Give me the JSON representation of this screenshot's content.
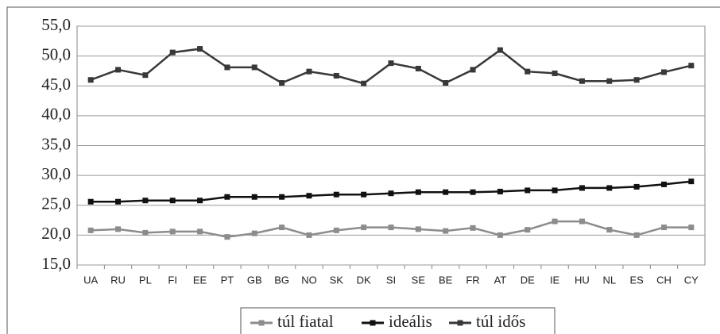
{
  "chart_data": {
    "type": "line",
    "categories": [
      "UA",
      "RU",
      "PL",
      "FI",
      "EE",
      "PT",
      "GB",
      "BG",
      "NO",
      "SK",
      "DK",
      "SI",
      "SE",
      "BE",
      "FR",
      "AT",
      "DE",
      "IE",
      "HU",
      "NL",
      "ES",
      "CH",
      "CY"
    ],
    "series": [
      {
        "name": "túl fiatal",
        "color": "#8c8c8c",
        "values": [
          20.8,
          21.0,
          20.4,
          20.6,
          20.6,
          19.7,
          20.3,
          21.3,
          20.0,
          20.8,
          21.3,
          21.3,
          21.0,
          20.7,
          21.2,
          20.0,
          20.9,
          22.3,
          22.3,
          20.9,
          20.0,
          21.3,
          21.3
        ]
      },
      {
        "name": "ideális",
        "color": "#111111",
        "values": [
          25.6,
          25.6,
          25.8,
          25.8,
          25.8,
          26.4,
          26.4,
          26.4,
          26.6,
          26.8,
          26.8,
          27.0,
          27.2,
          27.2,
          27.2,
          27.3,
          27.5,
          27.5,
          27.9,
          27.9,
          28.1,
          28.5,
          29.0
        ]
      },
      {
        "name": "túl idős",
        "color": "#383838",
        "values": [
          46.0,
          47.7,
          46.8,
          50.6,
          51.2,
          48.1,
          48.1,
          45.5,
          47.4,
          46.7,
          45.4,
          48.8,
          47.9,
          45.5,
          47.7,
          51.0,
          47.4,
          47.1,
          45.8,
          45.8,
          46.0,
          47.3,
          48.4
        ]
      }
    ],
    "ylim": [
      15,
      55
    ],
    "yticks": [
      {
        "value": 15,
        "label": "15,0"
      },
      {
        "value": 20,
        "label": "20,0"
      },
      {
        "value": 25,
        "label": "25,0"
      },
      {
        "value": 30,
        "label": "30,0"
      },
      {
        "value": 35,
        "label": "35,0"
      },
      {
        "value": 40,
        "label": "40,0"
      },
      {
        "value": 45,
        "label": "45,0"
      },
      {
        "value": 50,
        "label": "50,0"
      },
      {
        "value": 55,
        "label": "55,0"
      }
    ],
    "grid": true,
    "legend": "bottom"
  }
}
